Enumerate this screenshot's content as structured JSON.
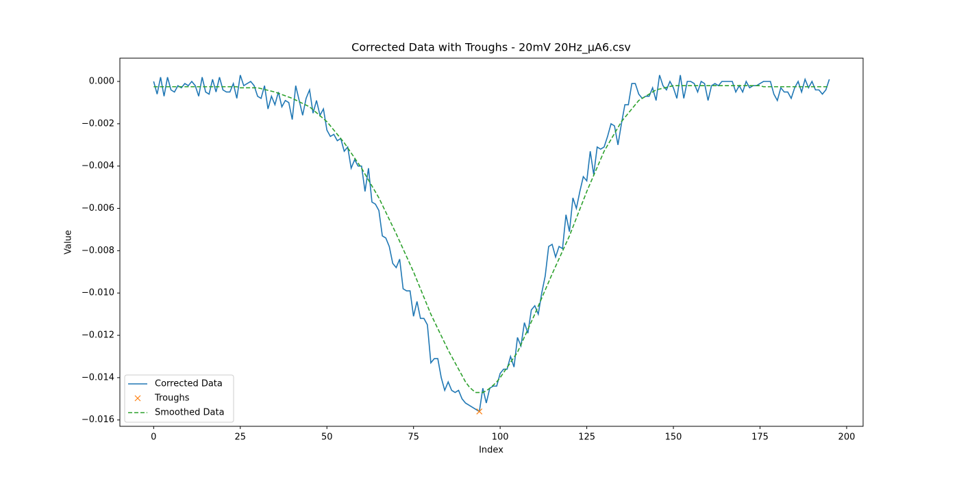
{
  "chart_data": {
    "type": "line",
    "title": "Corrected Data with Troughs - 20mV 20Hz_µA6.csv",
    "xlabel": "Index",
    "ylabel": "Value",
    "xlim": [
      -9.75,
      204.75
    ],
    "ylim": [
      -0.0163,
      0.0011
    ],
    "xticks": [
      0,
      25,
      50,
      75,
      100,
      125,
      150,
      175,
      200
    ],
    "yticks": [
      {
        "value": 0,
        "label": "0.000"
      },
      {
        "value": -0.002,
        "label": "−0.002"
      },
      {
        "value": -0.004,
        "label": "−0.004"
      },
      {
        "value": -0.006,
        "label": "−0.006"
      },
      {
        "value": -0.008,
        "label": "−0.008"
      },
      {
        "value": -0.01,
        "label": "−0.010"
      },
      {
        "value": -0.012,
        "label": "−0.012"
      },
      {
        "value": -0.014,
        "label": "−0.014"
      },
      {
        "value": -0.016,
        "label": "−0.016"
      }
    ],
    "grid": false,
    "legend": "lower left",
    "x": [
      0,
      1,
      2,
      3,
      4,
      5,
      6,
      7,
      8,
      9,
      10,
      11,
      12,
      13,
      14,
      15,
      16,
      17,
      18,
      19,
      20,
      21,
      22,
      23,
      24,
      25,
      26,
      27,
      28,
      29,
      30,
      31,
      32,
      33,
      34,
      35,
      36,
      37,
      38,
      39,
      40,
      41,
      42,
      43,
      44,
      45,
      46,
      47,
      48,
      49,
      50,
      51,
      52,
      53,
      54,
      55,
      56,
      57,
      58,
      59,
      60,
      61,
      62,
      63,
      64,
      65,
      66,
      67,
      68,
      69,
      70,
      71,
      72,
      73,
      74,
      75,
      76,
      77,
      78,
      79,
      80,
      81,
      82,
      83,
      84,
      85,
      86,
      87,
      88,
      89,
      90,
      91,
      92,
      93,
      94,
      95,
      96,
      97,
      98,
      99,
      100,
      101,
      102,
      103,
      104,
      105,
      106,
      107,
      108,
      109,
      110,
      111,
      112,
      113,
      114,
      115,
      116,
      117,
      118,
      119,
      120,
      121,
      122,
      123,
      124,
      125,
      126,
      127,
      128,
      129,
      130,
      131,
      132,
      133,
      134,
      135,
      136,
      137,
      138,
      139,
      140,
      141,
      142,
      143,
      144,
      145,
      146,
      147,
      148,
      149,
      150,
      151,
      152,
      153,
      154,
      155,
      156,
      157,
      158,
      159,
      160,
      161,
      162,
      163,
      164,
      165,
      166,
      167,
      168,
      169,
      170,
      171,
      172,
      173,
      174,
      175,
      176,
      177,
      178,
      179,
      180,
      181,
      182,
      183,
      184,
      185,
      186,
      187,
      188,
      189,
      190,
      191,
      192,
      193,
      194,
      195
    ],
    "series": [
      {
        "name": "Corrected Data",
        "color": "#1f77b4",
        "style": "solid",
        "values": [
          0.0,
          -0.0006,
          0.0002,
          -0.0007,
          0.0002,
          -0.0004,
          -0.0005,
          -0.0002,
          -0.0003,
          -0.0001,
          -0.0002,
          0.0,
          -0.0002,
          -0.0007,
          0.0002,
          -0.0005,
          -0.0006,
          0.0001,
          -0.0005,
          0.0002,
          -0.0004,
          -0.0005,
          -0.0005,
          -0.0001,
          -0.0008,
          0.0003,
          -0.0002,
          -0.0001,
          0.0,
          -0.0002,
          -0.0007,
          -0.0008,
          -0.0002,
          -0.0013,
          -0.0007,
          -0.0011,
          -0.0005,
          -0.0012,
          -0.0009,
          -0.001,
          -0.0018,
          -0.0002,
          -0.0009,
          -0.0016,
          -0.0008,
          -0.0004,
          -0.0015,
          -0.0009,
          -0.0016,
          -0.0013,
          -0.0023,
          -0.0026,
          -0.0025,
          -0.0028,
          -0.0027,
          -0.0033,
          -0.0031,
          -0.0041,
          -0.0037,
          -0.004,
          -0.004,
          -0.0052,
          -0.0041,
          -0.0057,
          -0.0058,
          -0.0061,
          -0.0073,
          -0.0074,
          -0.0078,
          -0.0086,
          -0.0088,
          -0.0084,
          -0.0098,
          -0.0099,
          -0.0099,
          -0.0111,
          -0.0104,
          -0.0112,
          -0.0112,
          -0.0115,
          -0.0133,
          -0.0131,
          -0.0131,
          -0.014,
          -0.0146,
          -0.0142,
          -0.0146,
          -0.0147,
          -0.0146,
          -0.015,
          -0.0152,
          -0.0153,
          -0.0154,
          -0.0155,
          -0.0156,
          -0.0145,
          -0.0152,
          -0.0145,
          -0.0144,
          -0.0144,
          -0.0138,
          -0.0136,
          -0.0136,
          -0.013,
          -0.0135,
          -0.0121,
          -0.0125,
          -0.0114,
          -0.0119,
          -0.0108,
          -0.0106,
          -0.011,
          -0.01,
          -0.0092,
          -0.0078,
          -0.0077,
          -0.0083,
          -0.0078,
          -0.0079,
          -0.0063,
          -0.0071,
          -0.0055,
          -0.006,
          -0.0052,
          -0.0045,
          -0.0047,
          -0.0033,
          -0.0044,
          -0.0031,
          -0.0032,
          -0.0031,
          -0.0026,
          -0.002,
          -0.0021,
          -0.003,
          -0.002,
          -0.0011,
          -0.0011,
          -0.0001,
          -0.0001,
          -0.0006,
          -0.0008,
          -0.0007,
          -0.0007,
          -0.0003,
          -0.0009,
          0.0003,
          -0.0002,
          -0.0004,
          0.0,
          -0.0003,
          -0.0008,
          0.0003,
          -0.0008,
          0.0,
          0.0,
          -0.0001,
          -0.0005,
          0.0,
          -0.0001,
          -0.0009,
          -0.0002,
          -0.0001,
          -0.0002,
          0.0,
          0.0,
          0.0,
          0.0,
          -0.0005,
          -0.0002,
          -0.0005,
          0.0,
          -0.0003,
          -0.0002,
          -0.0002,
          -0.0001,
          0.0,
          0.0,
          0.0,
          -0.0006,
          -0.0009,
          -0.0003,
          -0.0005,
          -0.0005,
          -0.0008,
          -0.0003,
          0.0,
          -0.0005,
          0.0001,
          -0.0003,
          0.0,
          -0.0004,
          -0.0004,
          -0.0006,
          -0.0004,
          0.0001
        ]
      },
      {
        "name": "Troughs",
        "color": "#ff7f0e",
        "style": "marker",
        "x": [
          94
        ],
        "values": [
          -0.0156
        ]
      },
      {
        "name": "Smoothed Data",
        "color": "#2ca02c",
        "style": "dashed",
        "values": [
          -0.00025,
          -0.00025,
          -0.00025,
          -0.00025,
          -0.00025,
          -0.00025,
          -0.00025,
          -0.00025,
          -0.00025,
          -0.00025,
          -0.00025,
          -0.00025,
          -0.00025,
          -0.00025,
          -0.00025,
          -0.00025,
          -0.00025,
          -0.00025,
          -0.00025,
          -0.00025,
          -0.00025,
          -0.00025,
          -0.00025,
          -0.00025,
          -0.00025,
          -0.0003,
          -0.0003,
          -0.0003,
          -0.0003,
          -0.0003,
          -0.0003,
          -0.00034,
          -0.00038,
          -0.00042,
          -0.00046,
          -0.0005,
          -0.00056,
          -0.00062,
          -0.00068,
          -0.00074,
          -0.0008,
          -0.00088,
          -0.00096,
          -0.00104,
          -0.00112,
          -0.0012,
          -0.00134,
          -0.00148,
          -0.00162,
          -0.00176,
          -0.0019,
          -0.0021,
          -0.0023,
          -0.0025,
          -0.0027,
          -0.0029,
          -0.00314,
          -0.00338,
          -0.00362,
          -0.00386,
          -0.0041,
          -0.00438,
          -0.00466,
          -0.00494,
          -0.00522,
          -0.0055,
          -0.00584,
          -0.00618,
          -0.00652,
          -0.00686,
          -0.0072,
          -0.00756,
          -0.00792,
          -0.00828,
          -0.00864,
          -0.009,
          -0.0094,
          -0.0098,
          -0.0102,
          -0.0106,
          -0.011,
          -0.01134,
          -0.01168,
          -0.01202,
          -0.01236,
          -0.0127,
          -0.013,
          -0.0133,
          -0.0136,
          -0.0139,
          -0.0142,
          -0.01442,
          -0.01458,
          -0.0147,
          -0.0147,
          -0.0147,
          -0.01462,
          -0.0145,
          -0.01436,
          -0.0142,
          -0.014,
          -0.01376,
          -0.01352,
          -0.01328,
          -0.01304,
          -0.0128,
          -0.01244,
          -0.01208,
          -0.01172,
          -0.01136,
          -0.011,
          -0.01062,
          -0.01024,
          -0.00986,
          -0.00948,
          -0.0091,
          -0.00874,
          -0.00838,
          -0.00802,
          -0.00766,
          -0.0073,
          -0.00688,
          -0.00646,
          -0.00604,
          -0.00562,
          -0.0052,
          -0.00482,
          -0.00444,
          -0.00406,
          -0.00368,
          -0.0033,
          -0.00302,
          -0.00274,
          -0.00246,
          -0.00218,
          -0.0019,
          -0.0017,
          -0.0015,
          -0.0013,
          -0.0011,
          -0.0009,
          -0.0008,
          -0.0007,
          -0.0006,
          -0.0005,
          -0.0004,
          -0.00036,
          -0.00032,
          -0.00028,
          -0.00024,
          -0.0002,
          -0.0002,
          -0.0002,
          -0.0002,
          -0.0002,
          -0.0002,
          -0.0002,
          -0.0002,
          -0.0002,
          -0.0002,
          -0.0002,
          -0.0002,
          -0.0002,
          -0.0002,
          -0.0002,
          -0.0002,
          -0.0002,
          -0.0002,
          -0.0002,
          -0.0002,
          -0.0002,
          -0.0002,
          -0.0002,
          -0.0002,
          -0.0002,
          -0.0002,
          -0.00025,
          -0.00025,
          -0.00025,
          -0.00025,
          -0.00025,
          -0.00025,
          -0.00025,
          -0.00025,
          -0.00025,
          -0.00025,
          -0.00025,
          -0.00025,
          -0.00025,
          -0.00025,
          -0.00025,
          -0.00025,
          -0.00025,
          -0.00025,
          -0.00025,
          -0.00025
        ]
      }
    ]
  }
}
